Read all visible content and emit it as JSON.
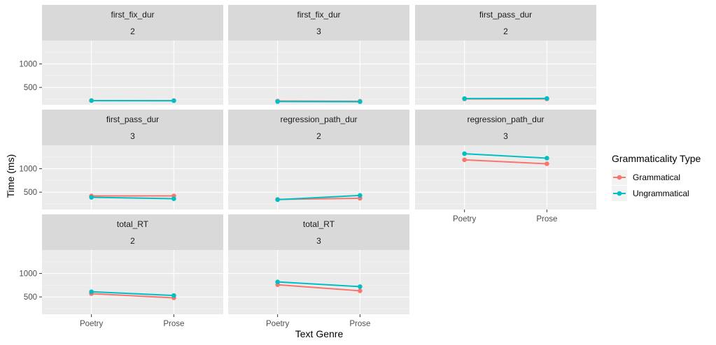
{
  "chart_data": {
    "type": "line",
    "xlabel": "Text Genre",
    "ylabel": "Time (ms)",
    "categories": [
      "Poetry",
      "Prose"
    ],
    "y_ticks": [
      500,
      1000
    ],
    "ylim": [
      130,
      1500
    ],
    "grid": true,
    "legend": {
      "title": "Grammaticality Type",
      "position": "right",
      "entries": [
        {
          "name": "Grammatical",
          "color": "#F8766D"
        },
        {
          "name": "Ungrammatical",
          "color": "#00BFC4"
        }
      ]
    },
    "panels": [
      {
        "measure": "first_fix_dur",
        "level": "2",
        "series": [
          {
            "name": "Grammatical",
            "values": [
              220,
              218
            ]
          },
          {
            "name": "Ungrammatical",
            "values": [
              218,
              216
            ]
          }
        ]
      },
      {
        "measure": "first_fix_dur",
        "level": "3",
        "series": [
          {
            "name": "Grammatical",
            "values": [
              210,
              205
            ]
          },
          {
            "name": "Ungrammatical",
            "values": [
              198,
              195
            ]
          }
        ]
      },
      {
        "measure": "first_pass_dur",
        "level": "2",
        "series": [
          {
            "name": "Grammatical",
            "values": [
              255,
              255
            ]
          },
          {
            "name": "Ungrammatical",
            "values": [
              262,
              265
            ]
          }
        ]
      },
      {
        "measure": "first_pass_dur",
        "level": "3",
        "series": [
          {
            "name": "Grammatical",
            "values": [
              420,
              420
            ]
          },
          {
            "name": "Ungrammatical",
            "values": [
              390,
              360
            ]
          }
        ]
      },
      {
        "measure": "regression_path_dur",
        "level": "2",
        "series": [
          {
            "name": "Grammatical",
            "values": [
              345,
              370
            ]
          },
          {
            "name": "Ungrammatical",
            "values": [
              340,
              430
            ]
          }
        ]
      },
      {
        "measure": "regression_path_dur",
        "level": "3",
        "series": [
          {
            "name": "Grammatical",
            "values": [
              1190,
              1105
            ]
          },
          {
            "name": "Ungrammatical",
            "values": [
              1320,
              1225
            ]
          }
        ]
      },
      {
        "measure": "total_RT",
        "level": "2",
        "series": [
          {
            "name": "Grammatical",
            "values": [
              570,
              480
            ]
          },
          {
            "name": "Ungrammatical",
            "values": [
              610,
              530
            ]
          }
        ]
      },
      {
        "measure": "total_RT",
        "level": "3",
        "series": [
          {
            "name": "Grammatical",
            "values": [
              760,
              630
            ]
          },
          {
            "name": "Ungrammatical",
            "values": [
              820,
              720
            ]
          }
        ]
      }
    ]
  }
}
